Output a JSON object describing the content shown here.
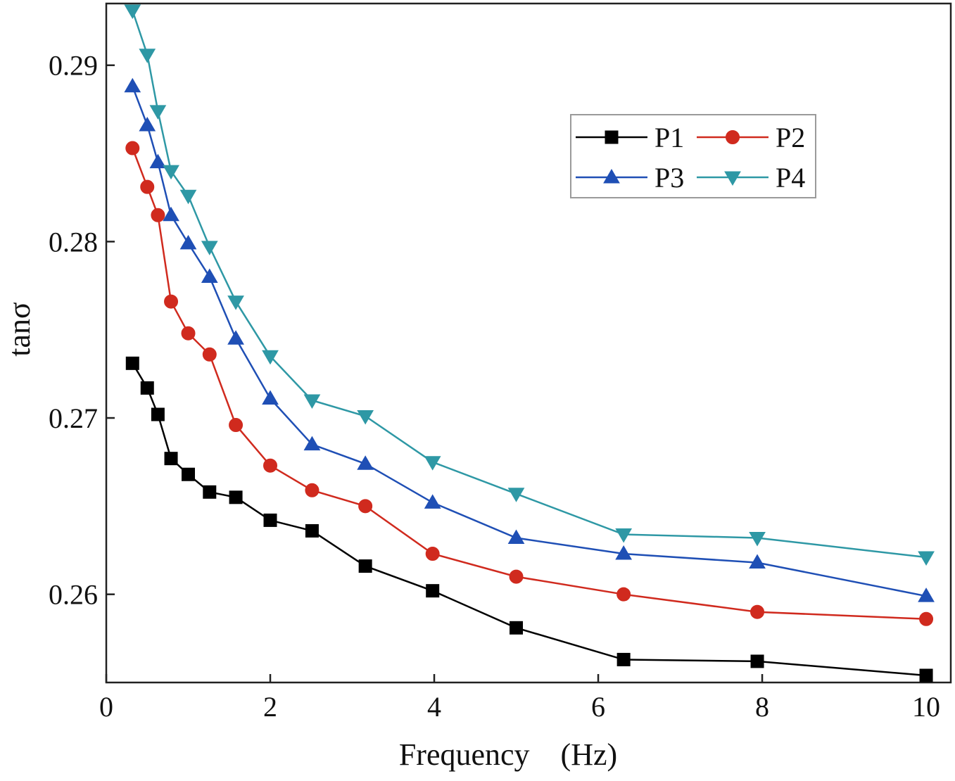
{
  "chart_data": {
    "type": "line",
    "title": "",
    "xlabel": "Frequency　(Hz)",
    "ylabel": "tanσ",
    "xlim": [
      0,
      10.3
    ],
    "ylim": [
      0.255,
      0.2935
    ],
    "x_ticks": [
      0,
      2,
      4,
      6,
      8,
      10
    ],
    "x_tick_labels": [
      "0",
      "2",
      "4",
      "6",
      "8",
      "10"
    ],
    "y_ticks": [
      0.26,
      0.27,
      0.28,
      0.29
    ],
    "y_tick_labels": [
      "0.26",
      "0.27",
      "0.28",
      "0.29"
    ],
    "grid": false,
    "legend_position": "top-right",
    "x": [
      0.32,
      0.5,
      0.63,
      0.79,
      1.0,
      1.26,
      1.58,
      2.0,
      2.51,
      3.16,
      3.98,
      5.0,
      6.31,
      7.94,
      10.0
    ],
    "series": [
      {
        "name": "P1",
        "color": "#000000",
        "marker": "square",
        "values": [
          0.2731,
          0.2717,
          0.2702,
          0.2677,
          0.2668,
          0.2658,
          0.2655,
          0.2642,
          0.2636,
          0.2616,
          0.2602,
          0.2581,
          0.2563,
          0.2562,
          0.2554
        ]
      },
      {
        "name": "P2",
        "color": "#d02a1e",
        "marker": "circle",
        "values": [
          0.2853,
          0.2831,
          0.2815,
          0.2766,
          0.2748,
          0.2736,
          0.2696,
          0.2673,
          0.2659,
          0.265,
          0.2623,
          0.261,
          0.26,
          0.259,
          0.2586
        ]
      },
      {
        "name": "P3",
        "color": "#1f4fb5",
        "marker": "triangle-up",
        "values": [
          0.2888,
          0.2866,
          0.2845,
          0.2815,
          0.2799,
          0.278,
          0.2745,
          0.2711,
          0.2685,
          0.2674,
          0.2652,
          0.2632,
          0.2623,
          0.2618,
          0.2599
        ]
      },
      {
        "name": "P4",
        "color": "#2e98a5",
        "marker": "triangle-down",
        "values": [
          0.2931,
          0.2906,
          0.2874,
          0.284,
          0.2826,
          0.2797,
          0.2766,
          0.2735,
          0.271,
          0.2701,
          0.2675,
          0.2657,
          0.2634,
          0.2632,
          0.2621
        ]
      }
    ]
  }
}
